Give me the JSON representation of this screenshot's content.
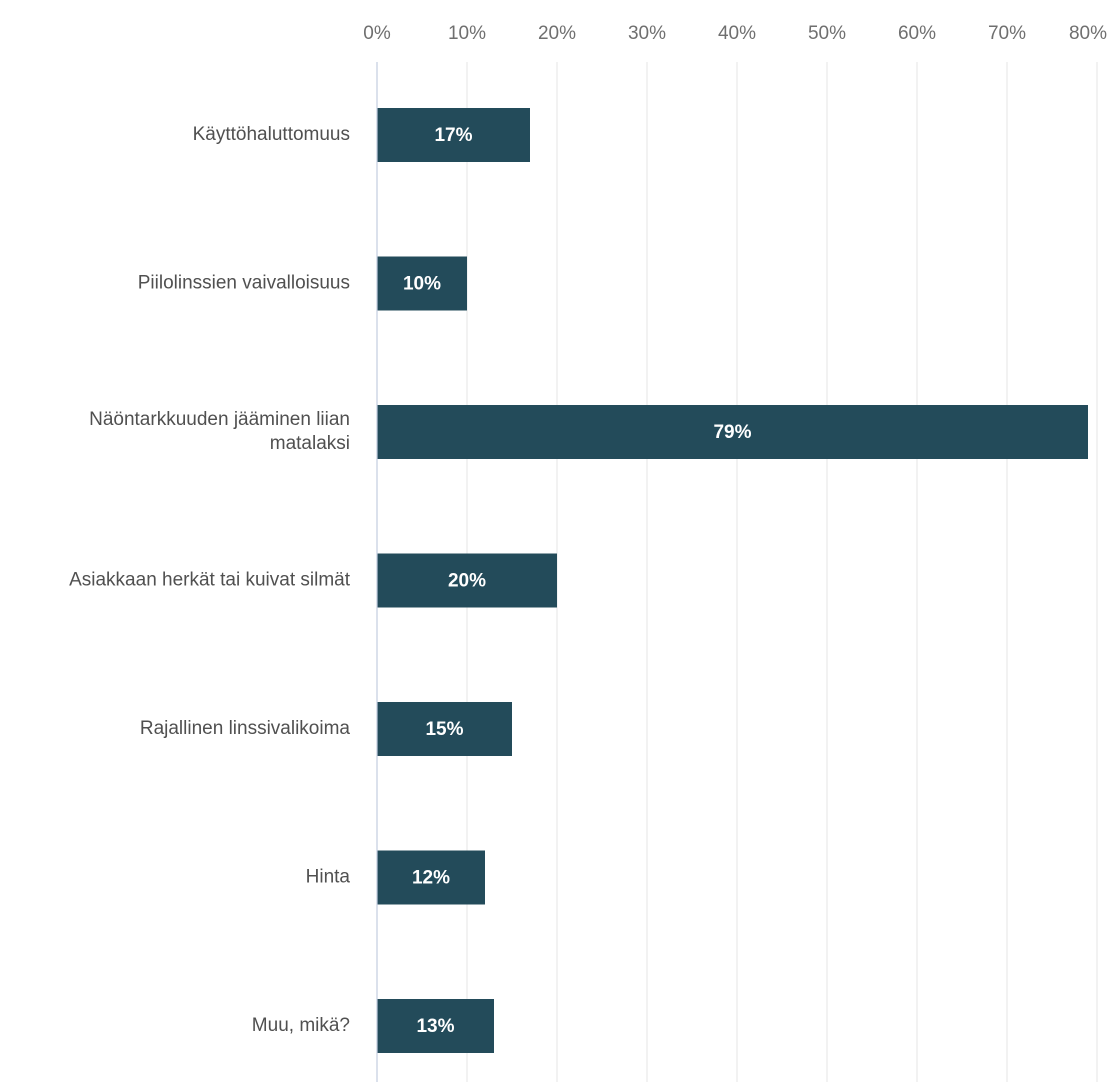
{
  "chart_data": {
    "type": "bar",
    "orientation": "horizontal",
    "categories": [
      [
        "Käyttöhaluttomuus"
      ],
      [
        "Piilolinssien vaivalloisuus"
      ],
      [
        "Näöntarkkuuden jääminen liian",
        "matalaksi"
      ],
      [
        "Asiakkaan herkät tai kuivat silmät"
      ],
      [
        "Rajallinen linssivalikoima"
      ],
      [
        "Hinta"
      ],
      [
        "Muu, mikä?"
      ]
    ],
    "values": [
      17,
      10,
      79,
      20,
      15,
      12,
      13
    ],
    "data_labels": [
      "17%",
      "10%",
      "79%",
      "20%",
      "15%",
      "12%",
      "13%"
    ],
    "x_ticks": [
      0,
      10,
      20,
      30,
      40,
      50,
      60,
      70,
      80
    ],
    "x_tick_labels": [
      "0%",
      "10%",
      "20%",
      "30%",
      "40%",
      "50%",
      "60%",
      "70%",
      "80%"
    ],
    "xlim": [
      0,
      80
    ],
    "x_axis_position": "top",
    "grid": true,
    "legend": "none",
    "title": "",
    "xlabel": "",
    "ylabel": "",
    "colors": {
      "bar": "#234b5a",
      "bar_label": "#ffffff",
      "category_text": "#505050",
      "tick_text": "#6f6f6f",
      "grid": "#e6e6e6",
      "axis": "#c3cde0"
    }
  }
}
